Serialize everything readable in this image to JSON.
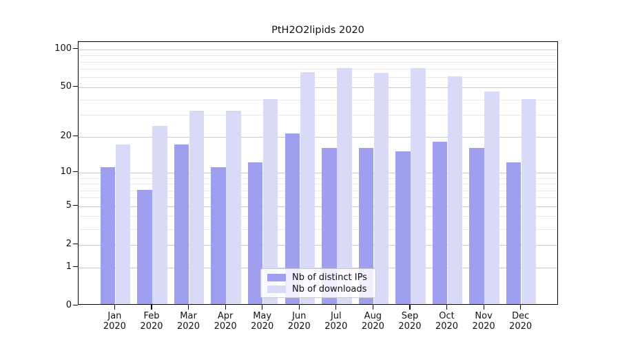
{
  "title": "PtH2O2lipids 2020",
  "chart_data": {
    "type": "bar",
    "title": "PtH2O2lipids 2020",
    "categories": [
      "Jan",
      "Feb",
      "Mar",
      "Apr",
      "May",
      "Jun",
      "Jul",
      "Aug",
      "Sep",
      "Oct",
      "Nov",
      "Dec"
    ],
    "category_year": "2020",
    "series": [
      {
        "name": "Nb of distinct IPs",
        "color": "#9f9ff0",
        "values": [
          11,
          7,
          17,
          11,
          12,
          21,
          16,
          16,
          15,
          18,
          16,
          12
        ]
      },
      {
        "name": "Nb of downloads",
        "color": "#d9d9f8",
        "values": [
          17,
          24,
          32,
          32,
          40,
          65,
          70,
          64,
          70,
          60,
          46,
          40
        ]
      }
    ],
    "y_scale": "log10(1+x)",
    "y_ticks": [
      0,
      1,
      2,
      5,
      10,
      20,
      50,
      100
    ],
    "y_minor_gridlines": [
      3,
      4,
      6,
      7,
      8,
      9,
      30,
      40,
      60,
      70,
      80,
      90
    ],
    "ylim": [
      0,
      114
    ],
    "xlabel": "",
    "ylabel": "",
    "grid": true,
    "legend_position": "lower center",
    "colors": {
      "axis": "#000000",
      "major_grid": "#c9c9c9",
      "minor_grid": "#e9e9e9",
      "text": "#111111",
      "background": "#ffffff"
    }
  }
}
